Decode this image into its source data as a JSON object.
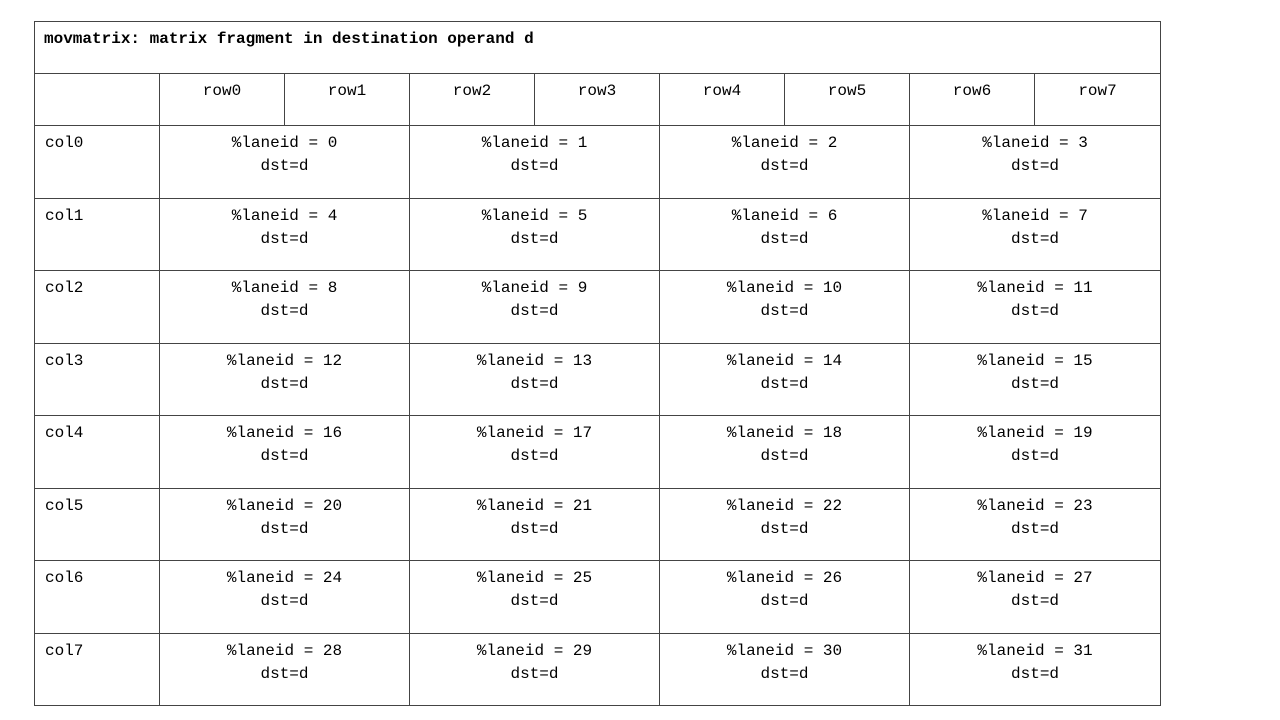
{
  "title": "movmatrix: matrix fragment in destination operand d",
  "column_headers": [
    "row0",
    "row1",
    "row2",
    "row3",
    "row4",
    "row5",
    "row6",
    "row7"
  ],
  "rows": [
    {
      "label": "col0",
      "cells": [
        {
          "lane": "%laneid = 0",
          "dst": "dst=d"
        },
        {
          "lane": "%laneid = 1",
          "dst": "dst=d"
        },
        {
          "lane": "%laneid = 2",
          "dst": "dst=d"
        },
        {
          "lane": "%laneid = 3",
          "dst": "dst=d"
        }
      ]
    },
    {
      "label": "col1",
      "cells": [
        {
          "lane": "%laneid = 4",
          "dst": "dst=d"
        },
        {
          "lane": "%laneid = 5",
          "dst": "dst=d"
        },
        {
          "lane": "%laneid = 6",
          "dst": "dst=d"
        },
        {
          "lane": "%laneid = 7",
          "dst": "dst=d"
        }
      ]
    },
    {
      "label": "col2",
      "cells": [
        {
          "lane": "%laneid = 8",
          "dst": "dst=d"
        },
        {
          "lane": "%laneid = 9",
          "dst": "dst=d"
        },
        {
          "lane": "%laneid = 10",
          "dst": "dst=d"
        },
        {
          "lane": "%laneid = 11",
          "dst": "dst=d"
        }
      ]
    },
    {
      "label": "col3",
      "cells": [
        {
          "lane": "%laneid = 12",
          "dst": "dst=d"
        },
        {
          "lane": "%laneid = 13",
          "dst": "dst=d"
        },
        {
          "lane": "%laneid = 14",
          "dst": "dst=d"
        },
        {
          "lane": "%laneid = 15",
          "dst": "dst=d"
        }
      ]
    },
    {
      "label": "col4",
      "cells": [
        {
          "lane": "%laneid = 16",
          "dst": "dst=d"
        },
        {
          "lane": "%laneid = 17",
          "dst": "dst=d"
        },
        {
          "lane": "%laneid = 18",
          "dst": "dst=d"
        },
        {
          "lane": "%laneid = 19",
          "dst": "dst=d"
        }
      ]
    },
    {
      "label": "col5",
      "cells": [
        {
          "lane": "%laneid = 20",
          "dst": "dst=d"
        },
        {
          "lane": "%laneid = 21",
          "dst": "dst=d"
        },
        {
          "lane": "%laneid = 22",
          "dst": "dst=d"
        },
        {
          "lane": "%laneid = 23",
          "dst": "dst=d"
        }
      ]
    },
    {
      "label": "col6",
      "cells": [
        {
          "lane": "%laneid = 24",
          "dst": "dst=d"
        },
        {
          "lane": "%laneid = 25",
          "dst": "dst=d"
        },
        {
          "lane": "%laneid = 26",
          "dst": "dst=d"
        },
        {
          "lane": "%laneid = 27",
          "dst": "dst=d"
        }
      ]
    },
    {
      "label": "col7",
      "cells": [
        {
          "lane": "%laneid = 28",
          "dst": "dst=d"
        },
        {
          "lane": "%laneid = 29",
          "dst": "dst=d"
        },
        {
          "lane": "%laneid = 30",
          "dst": "dst=d"
        },
        {
          "lane": "%laneid = 31",
          "dst": "dst=d"
        }
      ]
    }
  ]
}
